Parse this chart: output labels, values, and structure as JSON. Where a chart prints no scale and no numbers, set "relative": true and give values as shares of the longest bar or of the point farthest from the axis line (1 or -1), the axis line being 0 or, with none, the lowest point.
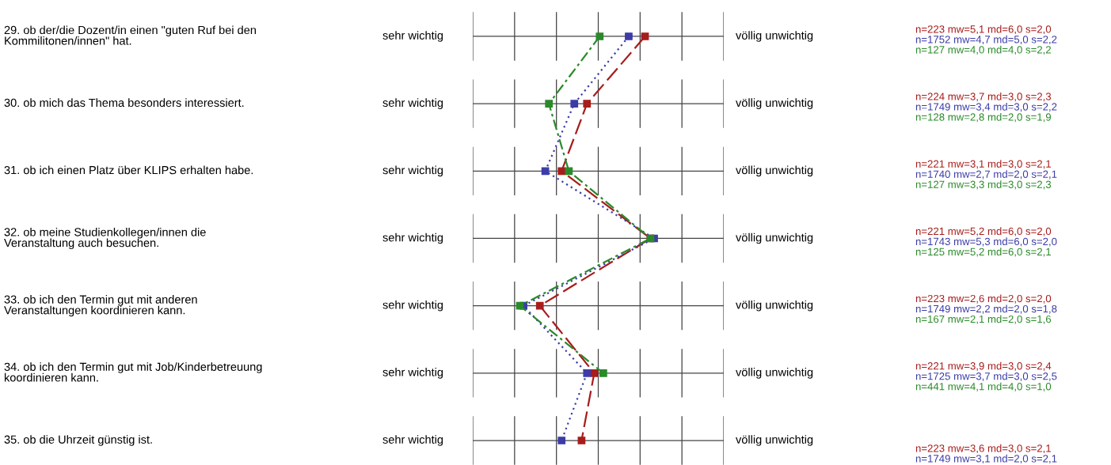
{
  "chart_data": {
    "type": "line",
    "orientation": "horizontal",
    "relative": true,
    "marker": "square",
    "grid": true,
    "categories": [
      "29. ob der/die Dozent/in einen \"guten Ruf bei den\nKommilitonen/innen\" hat.",
      "30. ob mich das Thema besonders interessiert.",
      "31. ob ich einen Platz über KLIPS erhalten habe.",
      "32. ob meine Studienkollegen/innen die\nVeranstaltung auch besuchen.",
      "33. ob ich den Termin gut mit anderen\nVeranstaltungen koordinieren kann.",
      "34. ob ich den Termin gut mit Job/Kinderbetreuung\nkoordinieren kann.",
      "35. ob die Uhrzeit günstig ist."
    ],
    "series": [
      {
        "color": "#a81c1c",
        "line_style": "dashed",
        "values": [
          0.95,
          0.63,
          0.49,
          0.98,
          0.37,
          0.67,
          0.6
        ]
      },
      {
        "color": "#3c3ca8",
        "line_style": "dotted",
        "values": [
          0.86,
          0.56,
          0.4,
          1,
          0.28,
          0.63,
          0.49
        ]
      },
      {
        "color": "#2a8a2a",
        "line_style": "dashdot",
        "values": [
          0.7,
          0.42,
          0.53,
          0.98,
          0.26,
          0.72,
          null
        ]
      }
    ],
    "annotations": [
      "sehr wichtig",
      "völlig unwichtig",
      "n=223 mw=5,1 md=6,0 s=2,0",
      "n=1752 mw=4,7 md=5,0 s=2,2",
      "n=127 mw=4,0 md=4,0 s=2,2",
      "sehr wichtig",
      "völlig unwichtig",
      "n=224 mw=3,7 md=3,0 s=2,3",
      "n=1749 mw=3,4 md=3,0 s=2,2",
      "n=128 mw=2,8 md=2,0 s=1,9",
      "sehr wichtig",
      "völlig unwichtig",
      "n=221 mw=3,1 md=3,0 s=2,1",
      "n=1740 mw=2,7 md=2,0 s=2,1",
      "n=127 mw=3,3 md=3,0 s=2,3",
      "sehr wichtig",
      "völlig unwichtig",
      "n=221 mw=5,2 md=6,0 s=2,0",
      "n=1743 mw=5,3 md=6,0 s=2,0",
      "n=125 mw=5,2 md=6,0 s=2,1",
      "sehr wichtig",
      "völlig unwichtig",
      "n=223 mw=2,6 md=2,0 s=2,0",
      "n=1749 mw=2,2 md=2,0 s=1,8",
      "n=167 mw=2,1 md=2,0 s=1,6",
      "sehr wichtig",
      "völlig unwichtig",
      "n=221 mw=3,9 md=3,0 s=2,4",
      "n=1725 mw=3,7 md=3,0 s=2,5",
      "n=441 mw=4,1 md=4,0 s=1,0",
      "sehr wichtig",
      "völlig unwichtig",
      "n=223 mw=3,6 md=3,0 s=2,1",
      "n=1749 mw=3,1 md=2,0 s=2,1"
    ]
  }
}
